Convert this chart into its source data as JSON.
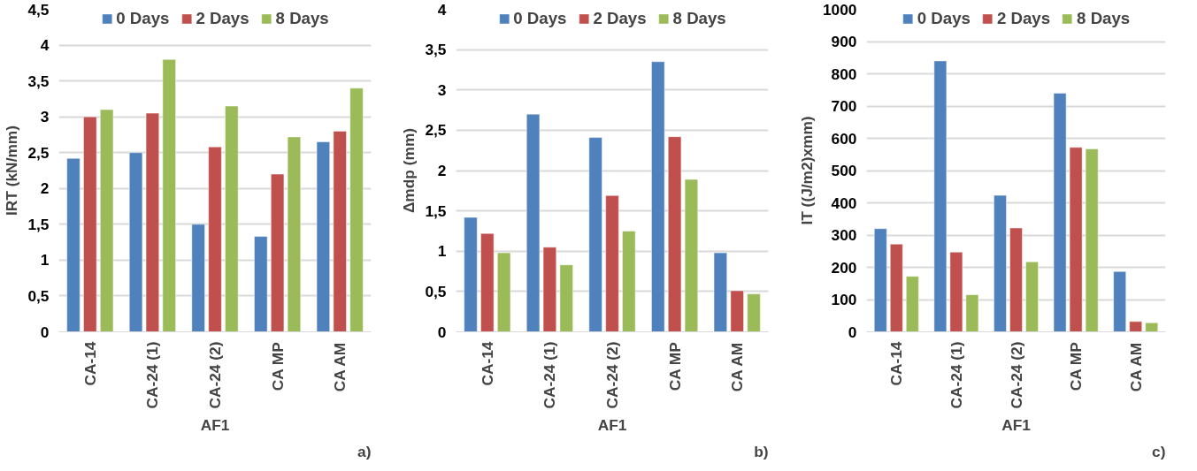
{
  "chart_data": [
    {
      "type": "bar",
      "categories": [
        "CA-14",
        "CA-24 (1)",
        "CA-24 (2)",
        "CA MP",
        "CA AM"
      ],
      "xlabel": "AF1",
      "ylabel": "IRT (kN/mm)",
      "annotations": [
        "a)"
      ],
      "series": [
        {
          "name": "0 Days",
          "color": "#4f81bd",
          "values": [
            2.42,
            2.5,
            1.5,
            1.33,
            2.65
          ]
        },
        {
          "name": "2 Days",
          "color": "#c0504d",
          "values": [
            3.0,
            3.05,
            2.58,
            2.2,
            2.8
          ]
        },
        {
          "name": "8 Days",
          "color": "#9bbb59",
          "values": [
            3.1,
            3.8,
            3.15,
            2.72,
            3.4
          ]
        }
      ],
      "ylim": [
        0,
        4.5
      ],
      "yticks": [
        0,
        {
          "value": 0.5,
          "label": "0,5"
        },
        1,
        {
          "value": 1.5,
          "label": "1,5"
        },
        2,
        {
          "value": 2.5,
          "label": "2,5"
        },
        3,
        {
          "value": 3.5,
          "label": "3,5"
        },
        4,
        {
          "value": 4.5,
          "label": "4,5"
        }
      ],
      "grid": "y",
      "legend": "top"
    },
    {
      "type": "bar",
      "categories": [
        "CA-14",
        "CA-24 (1)",
        "CA-24 (2)",
        "CA MP",
        "CA AM"
      ],
      "xlabel": "AF1",
      "ylabel": "Δmdp (mm)",
      "annotations": [
        "b)"
      ],
      "series": [
        {
          "name": "0 Days",
          "color": "#4f81bd",
          "values": [
            1.42,
            2.7,
            2.41,
            3.35,
            0.98
          ]
        },
        {
          "name": "2 Days",
          "color": "#c0504d",
          "values": [
            1.22,
            1.05,
            1.69,
            2.42,
            0.51
          ]
        },
        {
          "name": "8 Days",
          "color": "#9bbb59",
          "values": [
            0.98,
            0.83,
            1.25,
            1.89,
            0.47
          ]
        }
      ],
      "ylim": [
        0,
        4
      ],
      "yticks": [
        0,
        {
          "value": 0.5,
          "label": "0,5"
        },
        1,
        {
          "value": 1.5,
          "label": "1,5"
        },
        2,
        {
          "value": 2.5,
          "label": "2,5"
        },
        3,
        {
          "value": 3.5,
          "label": "3,5"
        },
        4
      ],
      "grid": "y",
      "legend": "top"
    },
    {
      "type": "bar",
      "categories": [
        "CA-14",
        "CA-24 (1)",
        "CA-24 (2)",
        "CA MP",
        "CA AM"
      ],
      "xlabel": "AF1",
      "ylabel": "IT ((J/m2)xmm)",
      "annotations": [
        "c)"
      ],
      "series": [
        {
          "name": "0 Days",
          "color": "#4f81bd",
          "values": [
            320,
            840,
            423,
            740,
            187
          ]
        },
        {
          "name": "2 Days",
          "color": "#c0504d",
          "values": [
            272,
            247,
            322,
            572,
            32
          ]
        },
        {
          "name": "8 Days",
          "color": "#9bbb59",
          "values": [
            172,
            115,
            217,
            567,
            28
          ]
        }
      ],
      "ylim": [
        0,
        1000
      ],
      "yticks": [
        0,
        100,
        200,
        300,
        400,
        500,
        600,
        700,
        800,
        900,
        1000
      ],
      "grid": "y",
      "legend": "top"
    }
  ]
}
